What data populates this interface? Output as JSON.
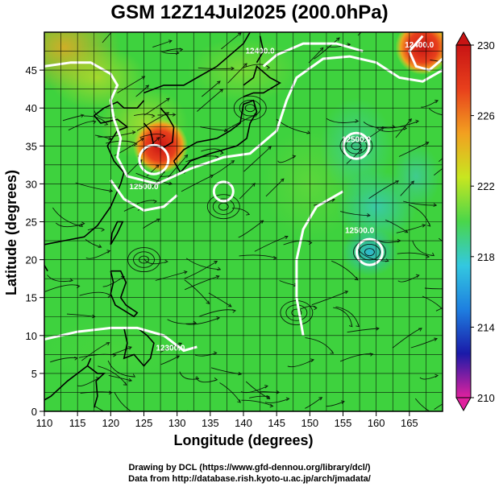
{
  "title": "GSM 12Z14Jul2025 (200.0hPa)",
  "credits": {
    "line1": "Drawing by DCL (https://www.gfd-dennou.org/library/dcl/)",
    "line2": "Data from http://database.rish.kyoto-u.ac.jp/arch/jmadata/"
  },
  "chart_data": {
    "type": "heatmap",
    "title": "GSM 12Z14Jul2025 (200.0hPa)",
    "xlabel": "Longitude (degrees)",
    "ylabel": "Latitude  (degrees)",
    "xlim": [
      110,
      170
    ],
    "ylim": [
      0,
      50
    ],
    "x_ticks": [
      110,
      115,
      120,
      125,
      130,
      135,
      140,
      145,
      150,
      155,
      160,
      165
    ],
    "y_ticks": [
      0,
      5,
      10,
      15,
      20,
      25,
      30,
      35,
      40,
      45
    ],
    "grid": true,
    "colorbar": {
      "range": [
        210,
        230
      ],
      "tick_values": [
        210,
        214,
        218,
        222,
        226,
        230
      ],
      "tick_labels": [
        "210",
        "214",
        "218",
        "222",
        "226",
        "230"
      ],
      "colormap": [
        "#e0219e",
        "#1a1aa8",
        "#1e7fe0",
        "#33c8e0",
        "#4ad64a",
        "#c8e620",
        "#f2a020",
        "#e8401c",
        "#c81414"
      ]
    },
    "contour_labels": [
      "12400.0",
      "12500.0",
      "12500.0",
      "12500.0",
      "12400.0",
      "12300.0"
    ],
    "warm_centers": [
      {
        "lon": 127.5,
        "lat": 35,
        "value": 229
      },
      {
        "lon": 167,
        "lat": 48,
        "value": 230
      }
    ],
    "cold_centers": [
      {
        "lon": 159,
        "lat": 21,
        "value": 218
      },
      {
        "lon": 157,
        "lat": 35,
        "value": 219
      }
    ],
    "streamlines": true
  }
}
